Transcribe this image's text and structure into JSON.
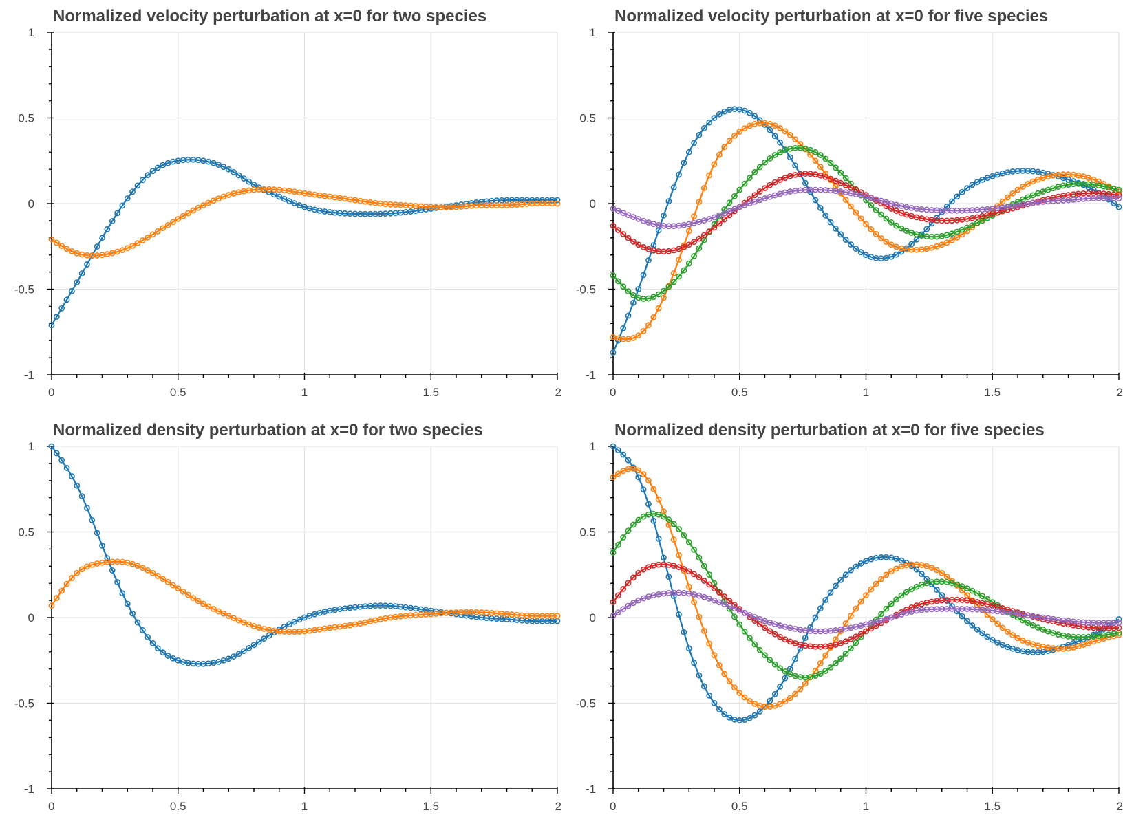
{
  "colors": {
    "blue": "#1f77b4",
    "orange": "#ff7f0e",
    "green": "#2ca02c",
    "red": "#d62728",
    "purple": "#9467bd"
  },
  "chart_data": [
    {
      "type": "line",
      "title": "Normalized velocity perturbation at x=0 for two species",
      "xlim": [
        0,
        2
      ],
      "ylim": [
        -1,
        1
      ],
      "xticks": [
        "0",
        "0.5",
        "1",
        "1.5",
        "2"
      ],
      "yticks": [
        "-1",
        "-0.5",
        "0",
        "0.5",
        "1"
      ],
      "grid": true,
      "markers": "circle",
      "x": [
        0,
        0.1,
        0.2,
        0.3,
        0.4,
        0.5,
        0.6,
        0.7,
        0.8,
        0.9,
        1.0,
        1.1,
        1.2,
        1.3,
        1.4,
        1.5,
        1.6,
        1.7,
        1.8,
        1.9,
        2.0
      ],
      "series": [
        {
          "color": "blue",
          "values": [
            -0.71,
            -0.46,
            -0.2,
            0.03,
            0.19,
            0.25,
            0.25,
            0.2,
            0.11,
            0.04,
            -0.02,
            -0.05,
            -0.06,
            -0.06,
            -0.05,
            -0.03,
            -0.01,
            0.01,
            0.02,
            0.02,
            0.02
          ]
        },
        {
          "color": "orange",
          "values": [
            -0.21,
            -0.29,
            -0.3,
            -0.26,
            -0.18,
            -0.09,
            -0.01,
            0.05,
            0.08,
            0.08,
            0.06,
            0.04,
            0.02,
            0.0,
            -0.01,
            -0.02,
            -0.02,
            -0.01,
            -0.01,
            0.0,
            0.0
          ]
        }
      ]
    },
    {
      "type": "line",
      "title": "Normalized velocity perturbation at x=0 for five species",
      "xlim": [
        0,
        2
      ],
      "ylim": [
        -1,
        1
      ],
      "xticks": [
        "0",
        "0.5",
        "1",
        "1.5",
        "2"
      ],
      "yticks": [
        "-1",
        "-0.5",
        "0",
        "0.5",
        "1"
      ],
      "grid": true,
      "markers": "circle",
      "x": [
        0,
        0.1,
        0.2,
        0.3,
        0.4,
        0.5,
        0.6,
        0.7,
        0.8,
        0.9,
        1.0,
        1.1,
        1.2,
        1.3,
        1.4,
        1.5,
        1.6,
        1.7,
        1.8,
        1.9,
        2.0
      ],
      "series": [
        {
          "color": "blue",
          "values": [
            -0.87,
            -0.5,
            -0.07,
            0.3,
            0.5,
            0.55,
            0.46,
            0.27,
            0.02,
            -0.18,
            -0.3,
            -0.31,
            -0.21,
            -0.05,
            0.09,
            0.16,
            0.19,
            0.18,
            0.14,
            0.08,
            -0.02
          ]
        },
        {
          "color": "orange",
          "values": [
            -0.78,
            -0.77,
            -0.55,
            -0.16,
            0.23,
            0.42,
            0.47,
            0.4,
            0.25,
            0.06,
            -0.12,
            -0.24,
            -0.27,
            -0.24,
            -0.16,
            -0.04,
            0.08,
            0.15,
            0.17,
            0.14,
            0.07
          ]
        },
        {
          "color": "green",
          "values": [
            -0.42,
            -0.55,
            -0.51,
            -0.35,
            -0.12,
            0.08,
            0.24,
            0.32,
            0.3,
            0.18,
            0.02,
            -0.11,
            -0.18,
            -0.19,
            -0.14,
            -0.07,
            0.01,
            0.07,
            0.11,
            0.11,
            0.08
          ]
        },
        {
          "color": "red",
          "values": [
            -0.13,
            -0.24,
            -0.28,
            -0.24,
            -0.14,
            -0.02,
            0.09,
            0.16,
            0.17,
            0.12,
            0.05,
            -0.03,
            -0.08,
            -0.1,
            -0.09,
            -0.06,
            -0.02,
            0.02,
            0.05,
            0.06,
            0.05
          ]
        },
        {
          "color": "purple",
          "values": [
            -0.03,
            -0.09,
            -0.13,
            -0.12,
            -0.08,
            -0.02,
            0.03,
            0.07,
            0.08,
            0.07,
            0.04,
            0.0,
            -0.03,
            -0.04,
            -0.04,
            -0.03,
            -0.01,
            0.01,
            0.02,
            0.03,
            0.03
          ]
        }
      ]
    },
    {
      "type": "line",
      "title": "Normalized density perturbation at x=0 for two species",
      "xlim": [
        0,
        2
      ],
      "ylim": [
        -1,
        1
      ],
      "xticks": [
        "0",
        "0.5",
        "1",
        "1.5",
        "2"
      ],
      "yticks": [
        "-1",
        "-0.5",
        "0",
        "0.5",
        "1"
      ],
      "grid": true,
      "markers": "circle",
      "x": [
        0,
        0.1,
        0.2,
        0.3,
        0.4,
        0.5,
        0.6,
        0.7,
        0.8,
        0.9,
        1.0,
        1.1,
        1.2,
        1.3,
        1.4,
        1.5,
        1.6,
        1.7,
        1.8,
        1.9,
        2.0
      ],
      "series": [
        {
          "color": "blue",
          "values": [
            1.0,
            0.77,
            0.42,
            0.08,
            -0.15,
            -0.25,
            -0.27,
            -0.24,
            -0.16,
            -0.07,
            0.0,
            0.04,
            0.06,
            0.07,
            0.06,
            0.04,
            0.02,
            0.0,
            -0.01,
            -0.02,
            -0.02
          ]
        },
        {
          "color": "orange",
          "values": [
            0.07,
            0.26,
            0.32,
            0.32,
            0.26,
            0.17,
            0.08,
            0.01,
            -0.05,
            -0.08,
            -0.08,
            -0.06,
            -0.04,
            -0.01,
            0.01,
            0.02,
            0.03,
            0.03,
            0.02,
            0.01,
            0.01
          ]
        }
      ]
    },
    {
      "type": "line",
      "title": "Normalized density perturbation at x=0 for five species",
      "xlim": [
        0,
        2
      ],
      "ylim": [
        -1,
        1
      ],
      "xticks": [
        "0",
        "0.5",
        "1",
        "1.5",
        "2"
      ],
      "yticks": [
        "-1",
        "-0.5",
        "0",
        "0.5",
        "1"
      ],
      "grid": true,
      "markers": "circle",
      "x": [
        0,
        0.1,
        0.2,
        0.3,
        0.4,
        0.5,
        0.6,
        0.7,
        0.8,
        0.9,
        1.0,
        1.1,
        1.2,
        1.3,
        1.4,
        1.5,
        1.6,
        1.7,
        1.8,
        1.9,
        2.0
      ],
      "series": [
        {
          "color": "blue",
          "values": [
            1.0,
            0.82,
            0.35,
            -0.18,
            -0.5,
            -0.6,
            -0.52,
            -0.3,
            0.0,
            0.22,
            0.33,
            0.35,
            0.28,
            0.13,
            -0.02,
            -0.13,
            -0.19,
            -0.2,
            -0.16,
            -0.1,
            -0.01
          ]
        },
        {
          "color": "orange",
          "values": [
            0.82,
            0.86,
            0.62,
            0.18,
            -0.22,
            -0.44,
            -0.52,
            -0.47,
            -0.31,
            -0.08,
            0.13,
            0.27,
            0.31,
            0.26,
            0.13,
            -0.01,
            -0.12,
            -0.17,
            -0.18,
            -0.14,
            -0.1
          ]
        },
        {
          "color": "green",
          "values": [
            0.38,
            0.57,
            0.59,
            0.44,
            0.2,
            -0.04,
            -0.22,
            -0.33,
            -0.34,
            -0.24,
            -0.08,
            0.08,
            0.18,
            0.21,
            0.17,
            0.09,
            0.0,
            -0.07,
            -0.11,
            -0.11,
            -0.09
          ]
        },
        {
          "color": "red",
          "values": [
            0.09,
            0.26,
            0.31,
            0.27,
            0.17,
            0.05,
            -0.06,
            -0.14,
            -0.17,
            -0.15,
            -0.08,
            0.0,
            0.07,
            0.1,
            0.1,
            0.07,
            0.03,
            -0.01,
            -0.04,
            -0.06,
            -0.06
          ]
        },
        {
          "color": "purple",
          "values": [
            0.01,
            0.1,
            0.14,
            0.14,
            0.1,
            0.04,
            -0.02,
            -0.06,
            -0.08,
            -0.07,
            -0.04,
            0.0,
            0.04,
            0.05,
            0.05,
            0.04,
            0.02,
            0.0,
            -0.02,
            -0.03,
            -0.03
          ]
        }
      ]
    }
  ]
}
